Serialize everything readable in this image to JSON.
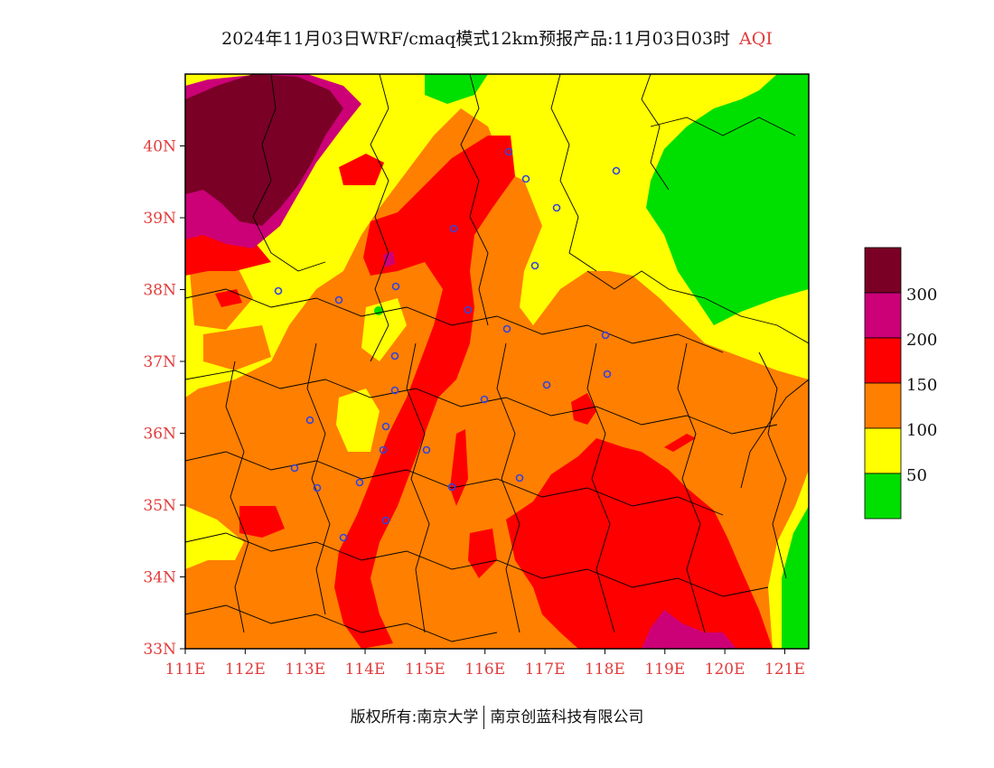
{
  "title": {
    "main": "2024年11月03日WRF/cmaq模式12km预报产品:11月03日03时",
    "variable": "AQI"
  },
  "map": {
    "lon_range": [
      111,
      121.4
    ],
    "lat_range": [
      33,
      41
    ],
    "x_ticks": [
      "111E",
      "112E",
      "113E",
      "114E",
      "115E",
      "116E",
      "117E",
      "118E",
      "119E",
      "120E",
      "121E"
    ],
    "y_ticks": [
      "33N",
      "34N",
      "35N",
      "36N",
      "37N",
      "38N",
      "39N",
      "40N"
    ],
    "colors": {
      "level_50": "#00e000",
      "level_100": "#ffff00",
      "level_150": "#ff7f00",
      "level_200": "#ff0000",
      "level_300": "#cc0077",
      "level_max": "#7a0026",
      "tick": "#e23b3b",
      "city_marker": "#3344dd"
    }
  },
  "legend": {
    "labels": [
      "300",
      "200",
      "150",
      "100",
      "50"
    ],
    "colors": [
      "#7a0026",
      "#cc0077",
      "#ff0000",
      "#ff7f00",
      "#ffff00",
      "#00e000"
    ]
  },
  "footer": {
    "left": "版权所有:南京大学",
    "right": "南京创蓝科技有限公司"
  }
}
